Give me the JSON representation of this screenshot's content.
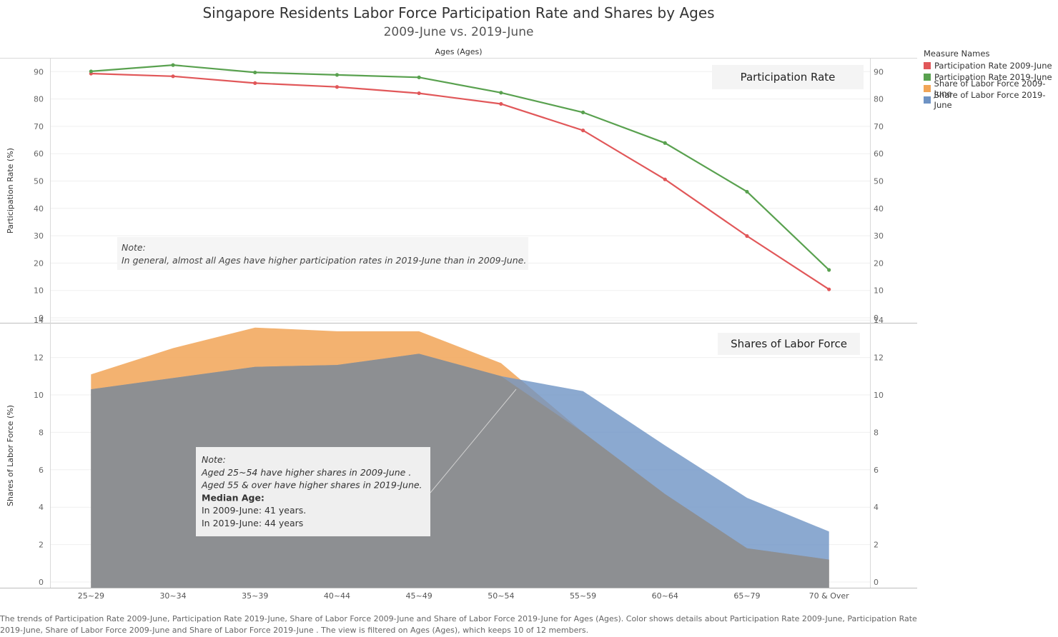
{
  "header": {
    "title": "Singapore Residents Labor Force Participation Rate and Shares by Ages",
    "subtitle": "2009-June vs. 2019-June",
    "top_axis_title": "Ages (Ages)"
  },
  "legend": {
    "title": "Measure Names",
    "items": [
      {
        "label": "Participation Rate 2009-June",
        "color": "#e15759"
      },
      {
        "label": "Participation Rate 2019-June",
        "color": "#59a14f"
      },
      {
        "label": "Share of Labor Force 2009-June",
        "color": "#f1a557"
      },
      {
        "label": "Share of Labor Force 2019-June",
        "color": "#6e93c4"
      }
    ]
  },
  "panels": {
    "top_label": "Participation Rate",
    "bottom_label": "Shares of Labor Force"
  },
  "notes": {
    "top": {
      "heading": "Note:",
      "line1": "In general, almost all Ages have higher participation rates in 2019-June than in 2009-June."
    },
    "bottom": {
      "heading": "Note:",
      "line1": "Aged 25~54 have higher shares in 2009-June .",
      "line2": "Aged 55 & over have higher shares in 2019-June.",
      "line3": "Median Age:",
      "line4": "In 2009-June: 41 years.",
      "line5": "In 2019-June: 44 years"
    }
  },
  "caption": "The trends of Participation Rate 2009-June, Participation Rate 2019-June, Share of Labor Force 2009-June  and Share of Labor Force 2019-June  for Ages (Ages).  Color shows details about Participation Rate 2009-June, Participation Rate 2019-June, Share of Labor Force 2009-June  and Share of Labor Force 2019-June . The view is filtered on Ages (Ages), which keeps 10 of 12 members.",
  "chart_data": [
    {
      "type": "line",
      "ylabel": "Participation Rate (%)",
      "ylim": [
        0,
        95
      ],
      "yticks": [
        0,
        10,
        20,
        30,
        40,
        50,
        60,
        70,
        80,
        90
      ],
      "categories": [
        "25~29",
        "30~34",
        "35~39",
        "40~44",
        "45~49",
        "50~54",
        "55~59",
        "60~64",
        "65~79",
        "70 & Over"
      ],
      "series": [
        {
          "name": "Participation Rate 2009-June",
          "color": "#e15759",
          "values": [
            89.3,
            88.3,
            85.8,
            84.4,
            82.1,
            78.2,
            68.5,
            50.6,
            29.9,
            10.4
          ]
        },
        {
          "name": "Participation Rate 2019-June",
          "color": "#59a14f",
          "values": [
            90.1,
            92.4,
            89.7,
            88.8,
            87.9,
            82.3,
            75.1,
            63.9,
            46.1,
            17.5
          ]
        }
      ],
      "grid": true
    },
    {
      "type": "area",
      "ylabel": "Shares of Labor Force (%)",
      "ylim": [
        -0.3,
        14
      ],
      "yticks": [
        0,
        2,
        4,
        6,
        8,
        10,
        12,
        14
      ],
      "categories": [
        "25~29",
        "30~34",
        "35~39",
        "40~44",
        "45~49",
        "50~54",
        "55~59",
        "60~64",
        "65~79",
        "70 & Over"
      ],
      "series": [
        {
          "name": "Share of Labor Force 2009-June",
          "color": "#f1a557",
          "values": [
            11.1,
            12.5,
            13.6,
            13.4,
            13.4,
            11.7,
            8.0,
            4.7,
            1.8,
            1.2
          ]
        },
        {
          "name": "Share of Labor Force 2019-June",
          "color": "#6e93c4",
          "values": [
            10.3,
            10.9,
            11.5,
            11.6,
            12.2,
            11.0,
            10.2,
            7.3,
            4.5,
            2.7
          ]
        }
      ],
      "grid": true
    }
  ]
}
